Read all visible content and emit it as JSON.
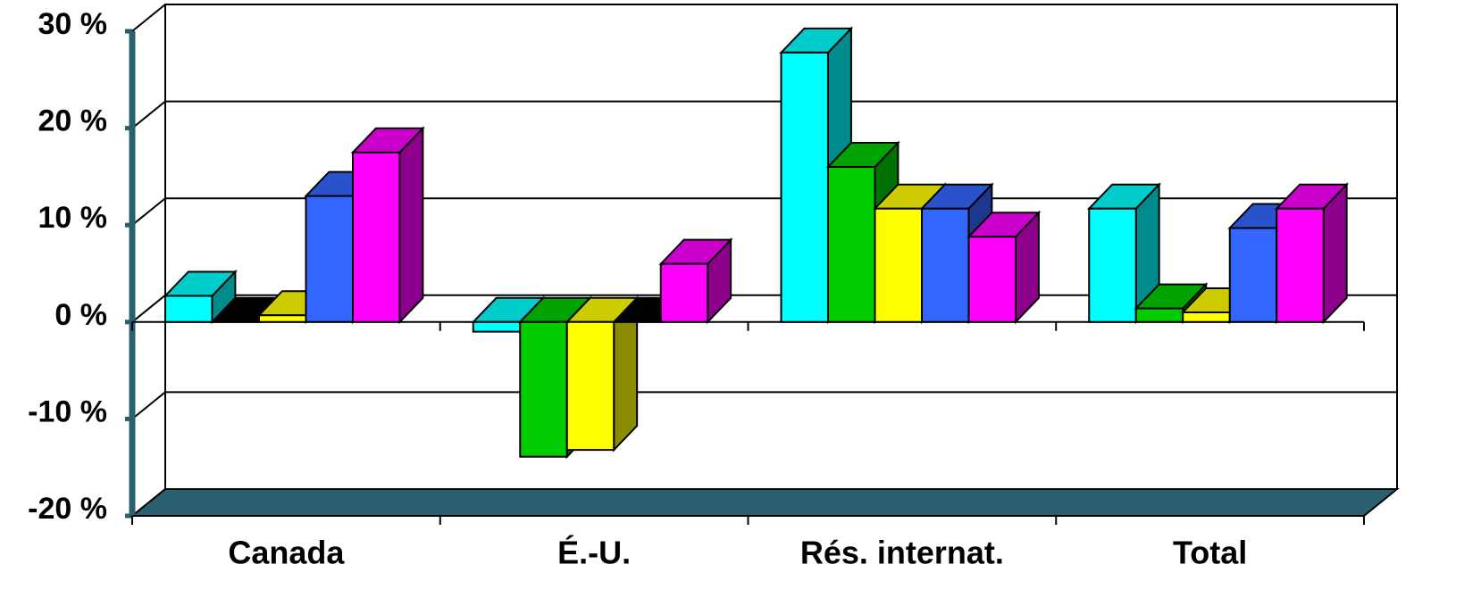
{
  "chart_data": {
    "type": "bar3d",
    "categories": [
      "Canada",
      "É.-U.",
      "Rés. internat.",
      "Total"
    ],
    "series": [
      {
        "color": "#00ffff",
        "values": [
          2.7,
          -1,
          27.8,
          11.7
        ]
      },
      {
        "color": "#00cc00",
        "values": [
          0,
          -13.9,
          16,
          1.4
        ]
      },
      {
        "color": "#ffff00",
        "values": [
          0.7,
          -13.2,
          11.7,
          1
        ]
      },
      {
        "color": "#3366ff",
        "values": [
          13,
          0,
          11.7,
          9.7
        ]
      },
      {
        "color": "#ff00ff",
        "values": [
          17.5,
          6,
          8.8,
          11.7
        ]
      }
    ],
    "ylim": [
      -20,
      30
    ],
    "yticks": [
      {
        "value": -20,
        "label": "-20 %"
      },
      {
        "value": -10,
        "label": "-10 %"
      },
      {
        "value": 0,
        "label": "0 %"
      },
      {
        "value": 10,
        "label": "10 %"
      },
      {
        "value": 20,
        "label": "20 %"
      },
      {
        "value": 30,
        "label": "30 %"
      }
    ],
    "grid": true
  }
}
